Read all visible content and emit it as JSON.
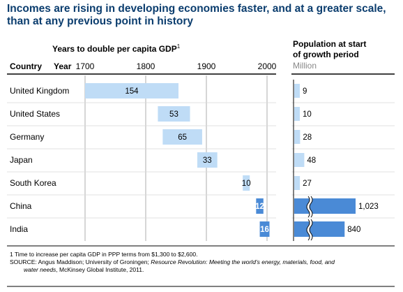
{
  "title": "Incomes are rising in developing economies faster, and at a greater scale, than at any previous point in history",
  "headers": {
    "years_to_double": "Years to double per capita GDP",
    "years_to_double_sup": "1",
    "country": "Country",
    "year": "Year",
    "population_line1": "Population at start",
    "population_line2": "of growth period",
    "population_unit": "Million"
  },
  "chart_data": {
    "type": "bar",
    "x_ticks": [
      "1700",
      "1800",
      "1900",
      "2000"
    ],
    "xlim": [
      1700,
      2010
    ],
    "categories": [
      "United Kingdom",
      "United States",
      "Germany",
      "Japan",
      "South Korea",
      "China",
      "India"
    ],
    "series": [
      {
        "starts": [
          1700,
          1820,
          1828,
          1885,
          1960,
          1982,
          1988
        ],
        "years_to_double": [
          154,
          53,
          65,
          33,
          10,
          12,
          16
        ]
      }
    ],
    "population": {
      "values": [
        9,
        10,
        28,
        48,
        27,
        1023,
        840
      ],
      "labels": [
        "9",
        "10",
        "28",
        "48",
        "27",
        "1,023",
        "840"
      ],
      "axis_break": [
        false,
        false,
        false,
        false,
        false,
        true,
        true
      ],
      "scale_max": 1023
    },
    "colors": {
      "light": "#bfdcf6",
      "dark": "#4a8ad6"
    }
  },
  "footnotes": {
    "note1": "1  Time to increase per capita GDP in PPP terms from $1,300 to $2,600.",
    "source_label": "SOURCE: Angus Maddison; University of Groningen; ",
    "source_italic": "Resource Revolution: Meeting the world’s energy, materials, food, and",
    "source_line2_italic": "water needs",
    "source_line2_rest": ", McKinsey Global Institute, 2011."
  }
}
